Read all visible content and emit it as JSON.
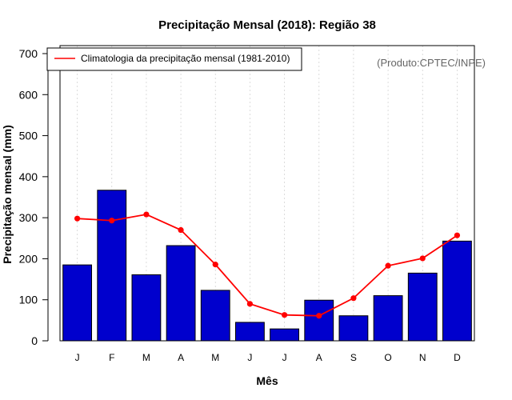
{
  "chart_data": {
    "type": "bar",
    "title": "Precipitação Mensal (2018): Região 38",
    "xlabel": "Mês",
    "ylabel": "Precipitação mensal (mm)",
    "ylim": [
      0,
      700
    ],
    "yticks": [
      "0",
      "100",
      "200",
      "300",
      "400",
      "500",
      "600",
      "700"
    ],
    "categories": [
      "J",
      "F",
      "M",
      "A",
      "M",
      "J",
      "J",
      "A",
      "S",
      "O",
      "N",
      "D"
    ],
    "series": [
      {
        "name": "Precipitação mensal 2018",
        "type": "bar",
        "color": "#0000cd",
        "values": [
          185,
          367,
          161,
          232,
          123,
          45,
          29,
          99,
          61,
          110,
          165,
          243
        ]
      },
      {
        "name": "Climatologia da precipitação mensal (1981-2010)",
        "type": "line",
        "color": "#ff0000",
        "values": [
          298,
          293,
          308,
          270,
          186,
          90,
          63,
          61,
          104,
          183,
          201,
          257
        ]
      }
    ],
    "legend": {
      "position": "top-left",
      "label": "Climatologia da precipitação mensal (1981-2010)"
    },
    "annotation": "(Produto:CPTEC/INPE)",
    "vertical_gridlines": true
  }
}
